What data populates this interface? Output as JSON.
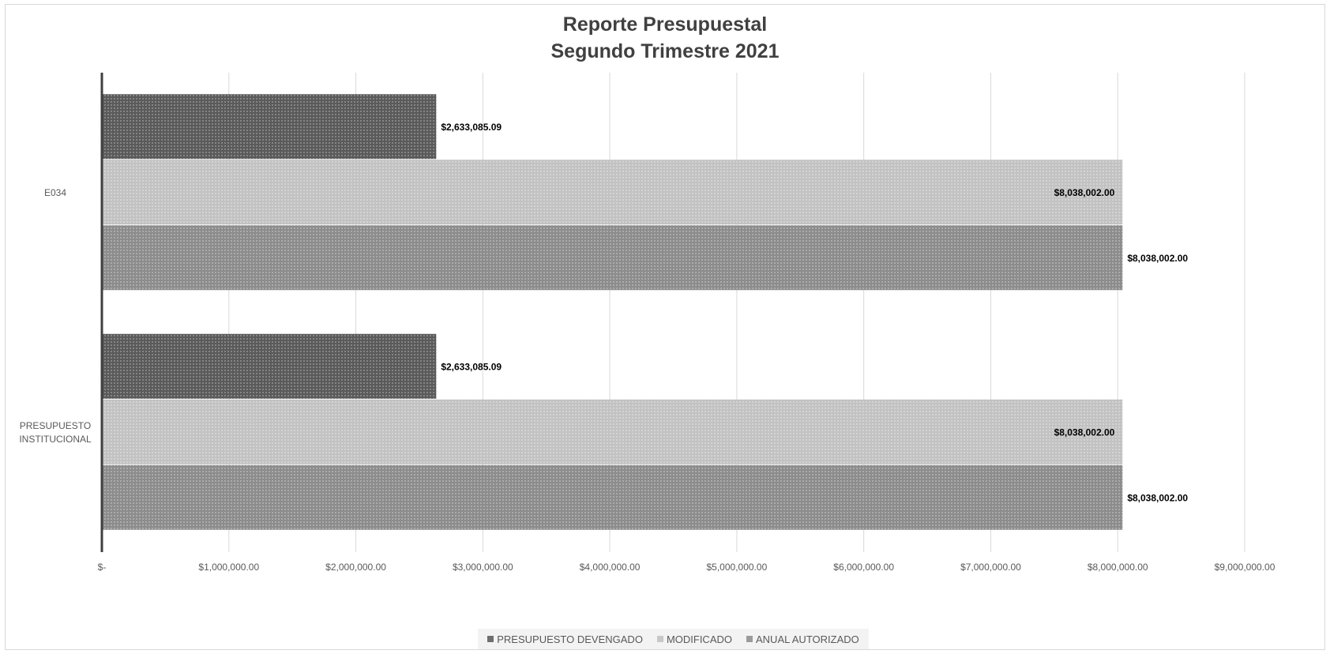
{
  "chart_data": {
    "type": "bar",
    "orientation": "horizontal",
    "title": [
      "Reporte Presupuestal",
      "Segundo Trimestre 2021"
    ],
    "categories": [
      "E034",
      "PRESUPUESTO INSTITUCIONAL"
    ],
    "category_label_lines": [
      [
        "E034"
      ],
      [
        "PRESUPUESTO",
        "INSTITUCIONAL"
      ]
    ],
    "series": [
      {
        "name": "PRESUPUESTO DEVENGADO",
        "values": [
          2633085.09,
          2633085.09
        ],
        "labels": [
          "$2,633,085.09",
          "$2,633,085.09"
        ],
        "color": "#6f6f6f"
      },
      {
        "name": "MODIFICADO",
        "values": [
          8038002.0,
          8038002.0
        ],
        "labels": [
          "$8,038,002.00",
          "$8,038,002.00"
        ],
        "color": "#c8c8c8"
      },
      {
        "name": "ANUAL AUTORIZADO",
        "values": [
          8038002.0,
          8038002.0
        ],
        "labels": [
          "$8,038,002.00",
          "$8,038,002.00"
        ],
        "color": "#9b9b9b"
      }
    ],
    "xlim": [
      0,
      9000000
    ],
    "x_ticks": [
      0,
      1000000,
      2000000,
      3000000,
      4000000,
      5000000,
      6000000,
      7000000,
      8000000,
      9000000
    ],
    "x_tick_labels": [
      "$-",
      "$1,000,000.00",
      "$2,000,000.00",
      "$3,000,000.00",
      "$4,000,000.00",
      "$5,000,000.00",
      "$6,000,000.00",
      "$7,000,000.00",
      "$8,000,000.00",
      "$9,000,000.00"
    ],
    "grid": true,
    "legend_position": "bottom"
  }
}
